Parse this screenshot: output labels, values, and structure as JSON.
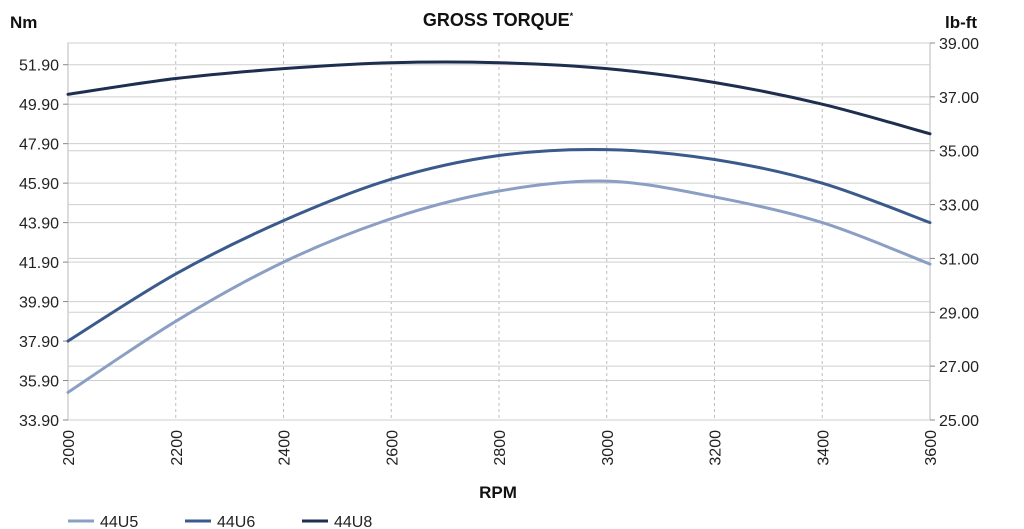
{
  "chart_data": {
    "type": "line",
    "title": "GROSS TORQUE",
    "title_superscript": "*",
    "xlabel": "RPM",
    "ylabel_left": "Nm",
    "ylabel_right": "lb-ft",
    "x": [
      2000,
      2200,
      2400,
      2600,
      2800,
      3000,
      3200,
      3400,
      3600
    ],
    "x_ticks": [
      "2000",
      "2200",
      "2400",
      "2600",
      "2800",
      "3000",
      "3200",
      "3400",
      "3600"
    ],
    "xlim": [
      2000,
      3600
    ],
    "ylim_left": [
      33.9,
      53.0
    ],
    "y_ticks_left": [
      "33.90",
      "35.90",
      "37.90",
      "39.90",
      "41.90",
      "43.90",
      "45.90",
      "47.90",
      "49.90",
      "51.90"
    ],
    "ylim_right": [
      25.0,
      39.0
    ],
    "y_ticks_right": [
      "25.00",
      "27.00",
      "29.00",
      "31.00",
      "33.00",
      "35.00",
      "37.00",
      "39.00"
    ],
    "grid": true,
    "legend_position": "bottom-left",
    "series": [
      {
        "name": "44U5",
        "color": "#8b9fc4",
        "values": [
          35.3,
          38.9,
          41.9,
          44.1,
          45.5,
          46.0,
          45.2,
          43.9,
          41.8
        ]
      },
      {
        "name": "44U6",
        "color": "#3b5a8c",
        "values": [
          37.9,
          41.3,
          44.0,
          46.1,
          47.3,
          47.6,
          47.1,
          45.9,
          43.9
        ]
      },
      {
        "name": "44U8",
        "color": "#1e2e4f",
        "values": [
          50.4,
          51.2,
          51.7,
          52.0,
          52.0,
          51.7,
          51.0,
          49.9,
          48.4
        ]
      }
    ]
  }
}
